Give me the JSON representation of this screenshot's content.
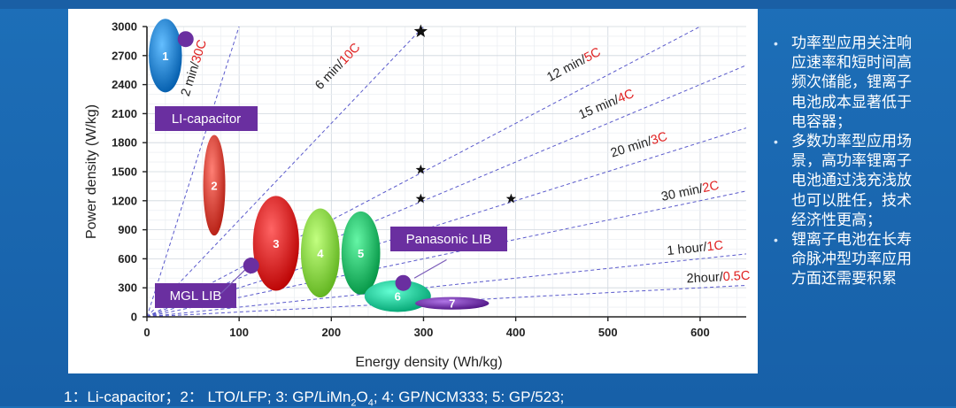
{
  "chart_data": {
    "type": "scatter",
    "xlabel": "Energy density (Wh/kg)",
    "ylabel": "Power density (W/kg)",
    "xlim": [
      0,
      650
    ],
    "ylim": [
      0,
      3000
    ],
    "x_ticks": [
      "0",
      "100",
      "200",
      "300",
      "400",
      "500",
      "600"
    ],
    "y_ticks": [
      "0",
      "300",
      "600",
      "900",
      "1200",
      "1500",
      "1800",
      "2100",
      "2400",
      "2700",
      "3000"
    ],
    "grid": true,
    "rate_lines": [
      {
        "time": "2 min/",
        "rate": "30C",
        "hours": 0.0333
      },
      {
        "time": "6 min/",
        "rate": "10C",
        "hours": 0.1
      },
      {
        "time": "12 min/",
        "rate": "5C",
        "hours": 0.2
      },
      {
        "time": "15 min/",
        "rate": "4C",
        "hours": 0.25
      },
      {
        "time": "20 min/",
        "rate": "3C",
        "hours": 0.333
      },
      {
        "time": "30 min/",
        "rate": "2C",
        "hours": 0.5
      },
      {
        "time": "1 hour/",
        "rate": "1C",
        "hours": 1
      },
      {
        "time": "2hour/",
        "rate": "0.5C",
        "hours": 2
      }
    ],
    "regions": [
      {
        "label": "1",
        "cx": 20,
        "cy": 2700,
        "rx": 18,
        "ry": 380,
        "color": "#1e78c8"
      },
      {
        "label": "2",
        "cx": 73,
        "cy": 1360,
        "rx": 12,
        "ry": 520,
        "color": "#d23a2f"
      },
      {
        "label": "3",
        "cx": 140,
        "cy": 760,
        "rx": 25,
        "ry": 490,
        "color": "#d71e1e"
      },
      {
        "label": "4",
        "cx": 188,
        "cy": 660,
        "rx": 21,
        "ry": 460,
        "color": "#7ccf3a"
      },
      {
        "label": "5",
        "cx": 232,
        "cy": 660,
        "rx": 21,
        "ry": 430,
        "color": "#1fb060"
      },
      {
        "label": "6",
        "cx": 272,
        "cy": 215,
        "rx": 36,
        "ry": 165,
        "color": "#1ec08e"
      },
      {
        "label": "7",
        "cx": 331,
        "cy": 140,
        "rx": 40,
        "ry": 65,
        "color": "#6a2fa0"
      }
    ],
    "points": [
      {
        "x": 42,
        "y": 2870,
        "marker": "circle"
      },
      {
        "x": 113,
        "y": 530,
        "marker": "circle"
      },
      {
        "x": 278,
        "y": 350,
        "marker": "circle"
      },
      {
        "x": 297,
        "y": 2950,
        "marker": "star"
      },
      {
        "x": 297,
        "y": 1520,
        "marker": "star"
      },
      {
        "x": 297,
        "y": 1220,
        "marker": "star"
      },
      {
        "x": 395,
        "y": 1220,
        "marker": "star"
      }
    ],
    "callouts": [
      {
        "label": "LI-capacitor"
      },
      {
        "label": "Panasonic LIB"
      },
      {
        "label": "MGL LIB"
      }
    ],
    "colors": {
      "rate_line": "#5a5acc",
      "rate_red": "#e02020",
      "callout": "#6a2fa0",
      "circle": "#6a2fa0"
    }
  },
  "side_text": [
    "功率型应用关注响应速率和短时间高频次储能，锂离子电池成本显著低于电容器；",
    "多数功率型应用场景，高功率锂离子电池通过浅充浅放也可以胜任，技术经济性更高；",
    "锂离子电池在长寿命脉冲型功率应用方面还需要积累"
  ],
  "side_lines": [
    [
      "功率型应用关注响",
      "应速率和短时间高",
      "频次储能，锂离子",
      "电池成本显著低于",
      "电容器；"
    ],
    [
      "多数功率型应用场",
      "景，高功率锂离子",
      "电池通过浅充浅放",
      "也可以胜任，技术",
      "经济性更高；"
    ],
    [
      "锂离子电池在长寿",
      "命脉冲型功率应用",
      "方面还需要积累"
    ]
  ],
  "bottom_note": {
    "part1": "1：Li-capacitor；2：  LTO/LFP; 3: GP/LiMn",
    "sub1": "2",
    "part2": "O",
    "sub2": "4",
    "part3": "; 4: GP/NCM333; 5: GP/523;"
  }
}
